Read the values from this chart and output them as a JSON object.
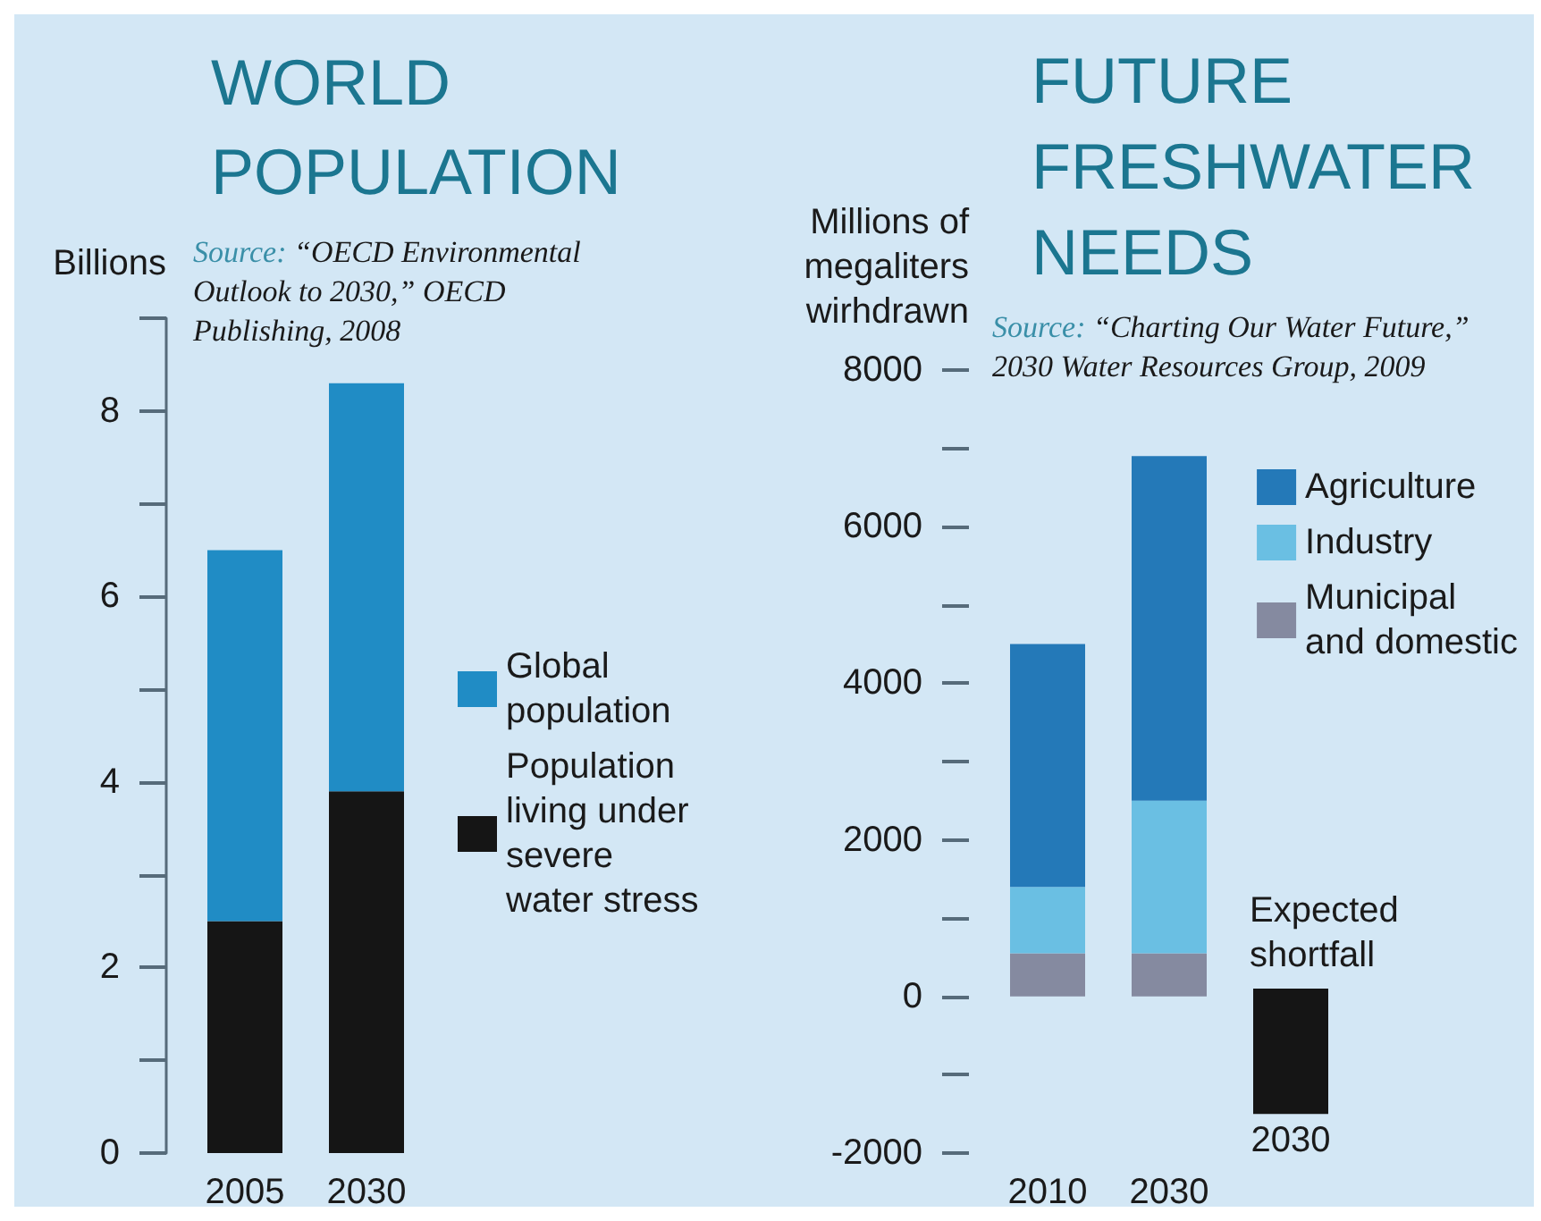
{
  "chart_data": [
    {
      "type": "bar",
      "title": "WORLD POPULATION",
      "ylabel": "Billions",
      "annotations": [
        "Source: “OECD Environmental Outlook to 2030,” OECD Publishing, 2008"
      ],
      "categories": [
        "2005",
        "2030"
      ],
      "stacked": true,
      "series": [
        {
          "name": "Population living under severe water stress",
          "color": "#151515",
          "values": [
            2.5,
            3.9
          ]
        },
        {
          "name": "Global population",
          "color": "#208cc5",
          "values": [
            4.0,
            4.4
          ]
        }
      ],
      "ylim": [
        0,
        9
      ],
      "yticks": [
        0,
        {
          "value": 1,
          "label": null
        },
        2,
        {
          "value": 3,
          "label": null
        },
        4,
        {
          "value": 5,
          "label": null
        },
        6,
        {
          "value": 7,
          "label": null
        },
        8,
        {
          "value": 9,
          "label": null
        }
      ],
      "legend": "right"
    },
    {
      "type": "bar",
      "title": "FUTURE FRESHWATER NEEDS",
      "ylabel": "Millions of megaliters wirhdrawn",
      "annotations": [
        "Source: “Charting Our Water Future,” 2030 Water Resources Group, 2009"
      ],
      "categories": [
        "2010",
        "2030",
        "2030"
      ],
      "stacked": true,
      "series": [
        {
          "name": "Municipal and domestic",
          "color": "#858aa0",
          "values": [
            550,
            550,
            null
          ]
        },
        {
          "name": "Industry",
          "color": "#6abfe3",
          "values": [
            850,
            1950,
            null
          ]
        },
        {
          "name": "Agriculture",
          "color": "#2479b8",
          "values": [
            3100,
            4400,
            null
          ]
        },
        {
          "name": "Expected shortfall",
          "color": "#151515",
          "values": [
            null,
            null,
            -1600
          ],
          "base": [
            null,
            null,
            100
          ]
        }
      ],
      "ylim": [
        -2000,
        8000
      ],
      "yticks": [
        -2000,
        {
          "value": -1000,
          "label": null
        },
        0,
        {
          "value": 1000,
          "label": null
        },
        2000,
        {
          "value": 3000,
          "label": null
        },
        4000,
        {
          "value": 5000,
          "label": null
        },
        6000,
        {
          "value": 7000,
          "label": null
        },
        8000
      ],
      "legend": "top right"
    }
  ]
}
